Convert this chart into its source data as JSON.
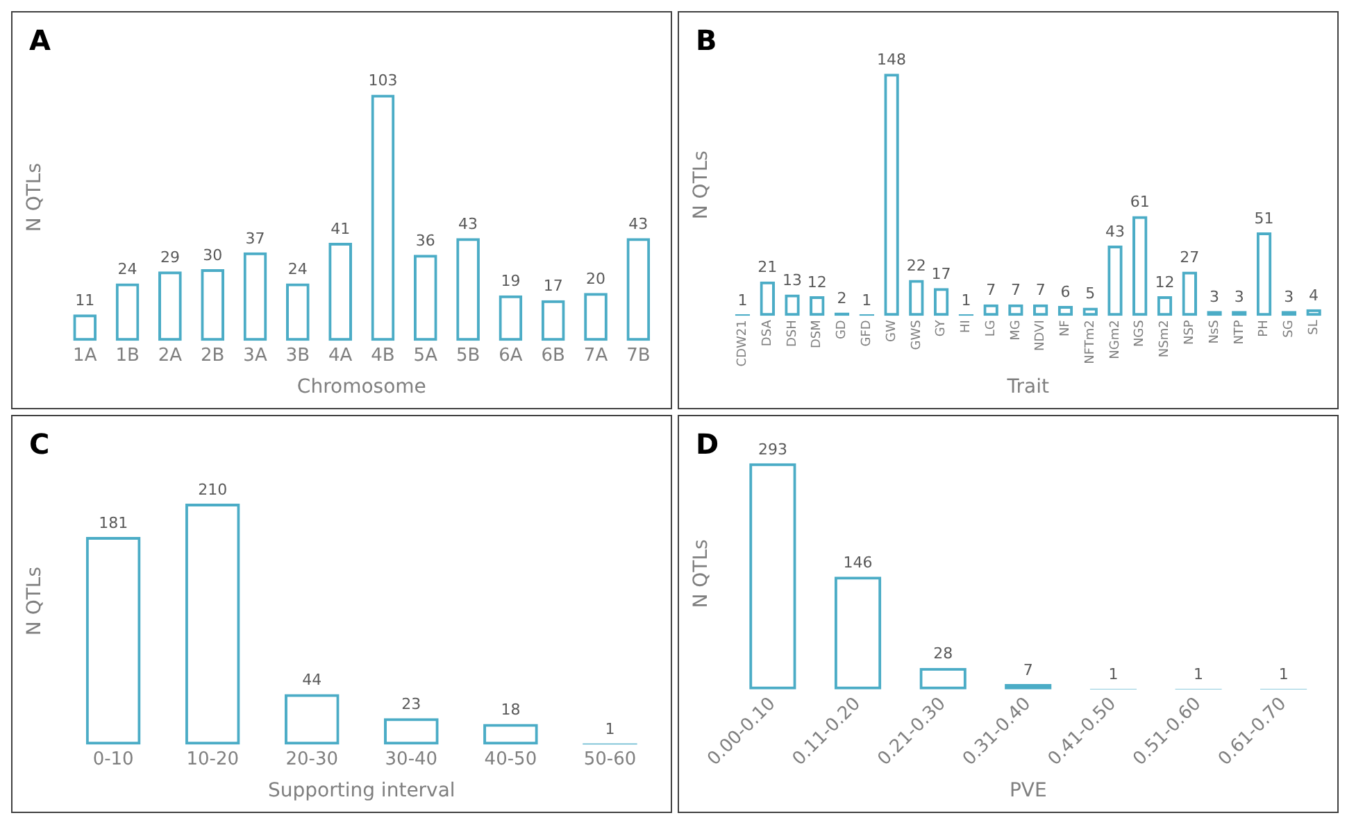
{
  "chart_data": [
    {
      "type": "bar",
      "title": "A",
      "xlabel": "Chromosome",
      "ylabel": "N QTLs",
      "categories": [
        "1A",
        "1B",
        "2A",
        "2B",
        "3A",
        "3B",
        "4A",
        "4B",
        "5A",
        "5B",
        "6A",
        "6B",
        "7A",
        "7B"
      ],
      "values": [
        11,
        24,
        29,
        30,
        37,
        24,
        41,
        103,
        36,
        43,
        19,
        17,
        20,
        43
      ],
      "color": "#4bacc6",
      "data_labels": true,
      "grid": false,
      "legend": false
    },
    {
      "type": "bar",
      "title": "B",
      "xlabel": "Trait",
      "ylabel": "N QTLs",
      "categories": [
        "CDW21",
        "DSA",
        "DSH",
        "DSM",
        "GD",
        "GFD",
        "GW",
        "GWS",
        "GY",
        "HI",
        "LG",
        "MG",
        "NDVI",
        "NF",
        "NFTm2",
        "NGm2",
        "NGS",
        "NSm2",
        "NSP",
        "NsS",
        "NTP",
        "PH",
        "SG",
        "SL"
      ],
      "values": [
        1,
        21,
        13,
        12,
        2,
        1,
        148,
        22,
        17,
        1,
        7,
        7,
        7,
        6,
        5,
        43,
        61,
        12,
        27,
        3,
        3,
        51,
        3,
        4
      ],
      "color": "#4bacc6",
      "data_labels": true,
      "grid": false,
      "legend": false
    },
    {
      "type": "bar",
      "title": "C",
      "xlabel": "Supporting interval",
      "ylabel": "N QTLs",
      "categories": [
        "0-10",
        "10-20",
        "20-30",
        "30-40",
        "40-50",
        "50-60"
      ],
      "values": [
        181,
        210,
        44,
        23,
        18,
        1
      ],
      "color": "#4bacc6",
      "data_labels": true,
      "grid": false,
      "legend": false
    },
    {
      "type": "bar",
      "title": "D",
      "xlabel": "PVE",
      "ylabel": "N QTLs",
      "categories": [
        "0.00-0.10",
        "0.11-0.20",
        "0.21-0.30",
        "0.31-0.40",
        "0.41-0.50",
        "0.51-0.60",
        "0.61-0.70"
      ],
      "values": [
        293,
        146,
        28,
        7,
        1,
        1,
        1
      ],
      "color": "#4bacc6",
      "data_labels": true,
      "grid": false,
      "legend": false
    }
  ]
}
